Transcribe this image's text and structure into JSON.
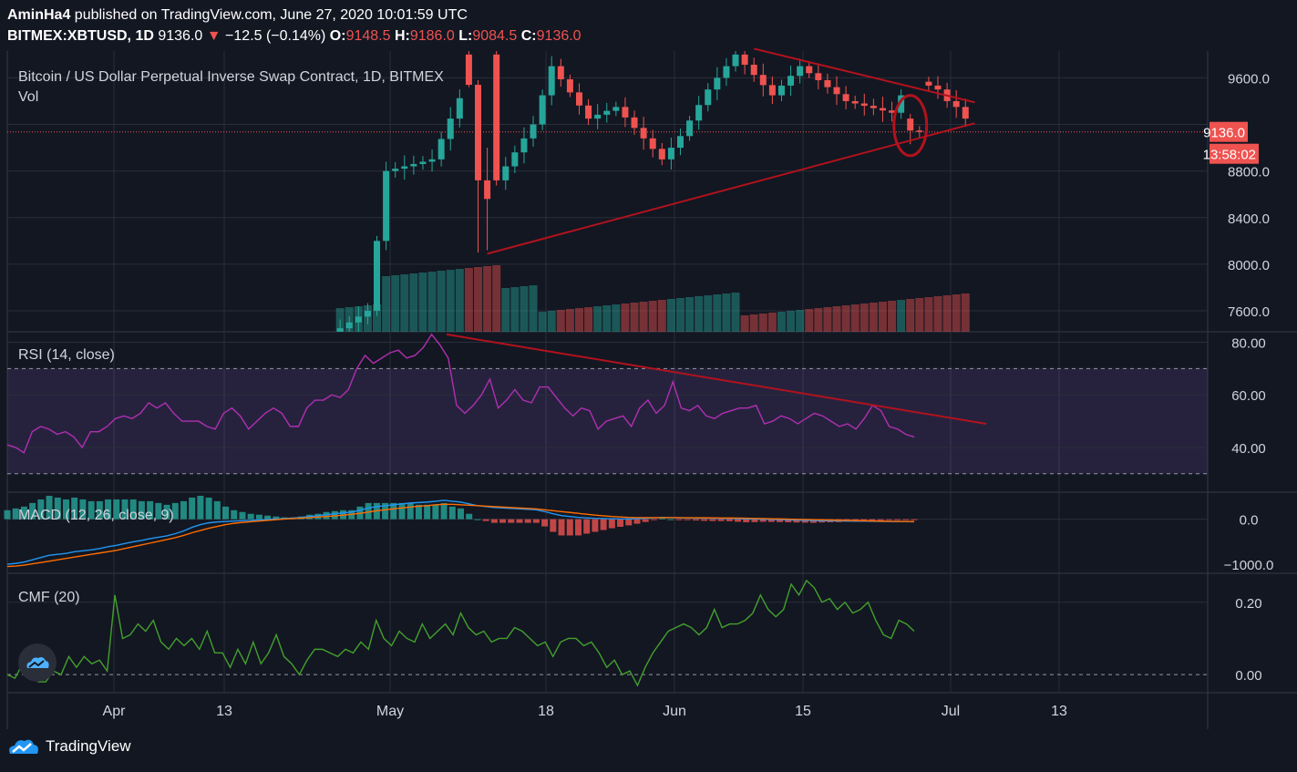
{
  "header": {
    "line1_user": "AminHa4",
    "line1_rest": " published on TradingView.com, June 27, 2020 10:01:59 UTC",
    "symbol": "BITMEX:XBTUSD, 1D",
    "last": "9136.0",
    "change": "−12.5 (−0.14%)",
    "o_label": "O:",
    "o": "9148.5",
    "h_label": "H:",
    "h": "9186.0",
    "l_label": "L:",
    "l": "9084.5",
    "c_label": "C:",
    "c": "9136.0"
  },
  "footer": {
    "brand": "TradingView"
  },
  "colors": {
    "background": "#131722",
    "up": "#26a69a",
    "down": "#ef5350",
    "grid": "#2a2e39",
    "rsi": "#b02fb0",
    "macd": "#2196f3",
    "signal": "#ff6d00",
    "cmf": "#43a02d",
    "drawing": "#b2121d"
  },
  "chart_data": [
    {
      "type": "candlestick",
      "title": "Bitcoin / US Dollar Perpetual Inverse Swap Contract, 1D, BITMEX",
      "volume_label": "Vol",
      "x_ticks": [
        "Apr",
        "13",
        "May",
        "18",
        "Jun",
        "15",
        "Jul",
        "13"
      ],
      "y_ticks": [
        "9600.0",
        "8800.0",
        "8400.0",
        "8000.0",
        "7600.0"
      ],
      "last_price_label": "9136.0",
      "countdown": "13:58:02",
      "candles_ohlc_recent": [
        {
          "date": "2020-05-09",
          "o": 9800,
          "h": 9920,
          "l": 9520,
          "c": 9540
        },
        {
          "date": "2020-05-10",
          "o": 9540,
          "h": 9580,
          "l": 8100,
          "c": 8720
        },
        {
          "date": "2020-05-11",
          "o": 8720,
          "h": 9000,
          "l": 8120,
          "c": 8560
        },
        {
          "date": "2020-06-26",
          "o": 9250,
          "h": 9290,
          "l": 9030,
          "c": 9148
        },
        {
          "date": "2020-06-27",
          "o": 9148,
          "h": 9186,
          "l": 9084,
          "c": 9136
        }
      ]
    },
    {
      "type": "line",
      "title": "RSI (14, close)",
      "y_ticks": [
        "80.00",
        "60.00",
        "40.00"
      ],
      "ylim": [
        23,
        84
      ],
      "bands": [
        30,
        70
      ],
      "values": [
        41,
        40,
        38,
        46,
        48,
        47,
        45,
        46,
        44,
        40,
        46,
        46,
        48,
        51,
        52,
        51,
        53,
        57,
        55,
        57,
        53,
        50,
        50,
        50,
        48,
        47,
        53,
        55,
        52,
        47,
        50,
        53,
        55,
        53,
        48,
        48,
        55,
        58,
        58,
        60,
        59,
        62,
        70,
        75,
        72,
        74,
        76,
        77,
        74,
        75,
        78,
        83,
        79,
        74,
        56,
        53,
        56,
        60,
        66,
        55,
        58,
        62,
        58,
        57,
        63,
        63,
        59,
        55,
        52,
        55,
        54,
        47,
        50,
        51,
        52,
        48,
        55,
        58,
        53,
        56,
        65,
        55,
        54,
        56,
        52,
        51,
        53,
        54,
        55,
        55,
        56,
        49,
        50,
        52,
        51,
        49,
        51,
        53,
        52,
        50,
        48,
        49,
        47,
        51,
        56,
        54,
        48,
        47,
        45,
        44
      ]
    },
    {
      "type": "line",
      "title": "MACD (12, 26, close, 9)",
      "y_ticks": [
        "0.0",
        "−1000.0"
      ],
      "ylim": [
        -1200,
        600
      ],
      "series": [
        {
          "values": [
            -1000,
            -980,
            -950,
            -900,
            -850,
            -800,
            -780,
            -760,
            -720,
            -700,
            -680,
            -650,
            -610,
            -580,
            -540,
            -500,
            -470,
            -430,
            -400,
            -370,
            -320,
            -260,
            -180,
            -120,
            -80,
            -60,
            -50,
            -40,
            -30,
            -25,
            -15,
            -5,
            5,
            15,
            25,
            40,
            60,
            80,
            100,
            120,
            140,
            160,
            200,
            250,
            280,
            300,
            320,
            340,
            360,
            370,
            380,
            400,
            420,
            400,
            380,
            340,
            300,
            280,
            260,
            250,
            240,
            230,
            220,
            210,
            170,
            120,
            80,
            60,
            40,
            30,
            20,
            15,
            10,
            8,
            6,
            10,
            20,
            30,
            40,
            35,
            30,
            28,
            25,
            22,
            20,
            18,
            15,
            10,
            5,
            2,
            0,
            -5,
            -10,
            -15,
            -20,
            -25,
            -30,
            -32,
            -35,
            -38,
            -40,
            -42,
            -44,
            -46,
            -48,
            -50,
            -52,
            -54,
            -55
          ]
        },
        {
          "values": [
            -1050,
            -1040,
            -1020,
            -990,
            -960,
            -930,
            -900,
            -870,
            -840,
            -810,
            -780,
            -750,
            -720,
            -690,
            -650,
            -610,
            -570,
            -530,
            -490,
            -450,
            -410,
            -360,
            -300,
            -250,
            -200,
            -160,
            -120,
            -90,
            -70,
            -55,
            -40,
            -25,
            -10,
            5,
            15,
            25,
            35,
            50,
            60,
            75,
            90,
            110,
            130,
            160,
            190,
            210,
            230,
            250,
            270,
            290,
            300,
            320,
            330,
            330,
            320,
            310,
            300,
            290,
            280,
            270,
            260,
            250,
            240,
            230,
            210,
            190,
            170,
            150,
            130,
            110,
            90,
            75,
            60,
            50,
            40,
            35,
            35,
            35,
            35,
            35,
            34,
            33,
            32,
            31,
            30,
            28,
            26,
            24,
            22,
            18,
            14,
            10,
            6,
            2,
            -2,
            -6,
            -10,
            -14,
            -18,
            -22,
            -26,
            -30,
            -34,
            -38,
            -42,
            -45,
            -48,
            -50,
            -52
          ]
        }
      ]
    },
    {
      "type": "line",
      "title": "CMF (20)",
      "y_ticks": [
        "0.20",
        "0.00"
      ],
      "ylim": [
        -0.05,
        0.28
      ],
      "values": [
        0.0,
        -0.01,
        0.03,
        0.02,
        -0.02,
        -0.02,
        0.01,
        0.0,
        0.05,
        0.02,
        0.05,
        0.03,
        0.04,
        0.01,
        0.22,
        0.1,
        0.11,
        0.14,
        0.12,
        0.15,
        0.09,
        0.07,
        0.1,
        0.08,
        0.1,
        0.07,
        0.12,
        0.06,
        0.06,
        0.02,
        0.07,
        0.03,
        0.09,
        0.03,
        0.06,
        0.11,
        0.05,
        0.03,
        0.0,
        0.04,
        0.07,
        0.07,
        0.06,
        0.05,
        0.07,
        0.06,
        0.09,
        0.07,
        0.15,
        0.1,
        0.08,
        0.12,
        0.1,
        0.09,
        0.14,
        0.1,
        0.12,
        0.14,
        0.11,
        0.17,
        0.13,
        0.11,
        0.12,
        0.09,
        0.1,
        0.1,
        0.13,
        0.12,
        0.1,
        0.08,
        0.09,
        0.05,
        0.09,
        0.1,
        0.1,
        0.08,
        0.09,
        0.06,
        0.02,
        0.04,
        0.0,
        0.01,
        -0.03,
        0.02,
        0.06,
        0.09,
        0.12,
        0.13,
        0.14,
        0.13,
        0.11,
        0.13,
        0.18,
        0.13,
        0.14,
        0.14,
        0.15,
        0.17,
        0.22,
        0.18,
        0.16,
        0.18,
        0.25,
        0.22,
        0.26,
        0.24,
        0.2,
        0.21,
        0.18,
        0.2,
        0.17,
        0.18,
        0.2,
        0.15,
        0.11,
        0.1,
        0.15,
        0.14,
        0.12
      ]
    }
  ]
}
